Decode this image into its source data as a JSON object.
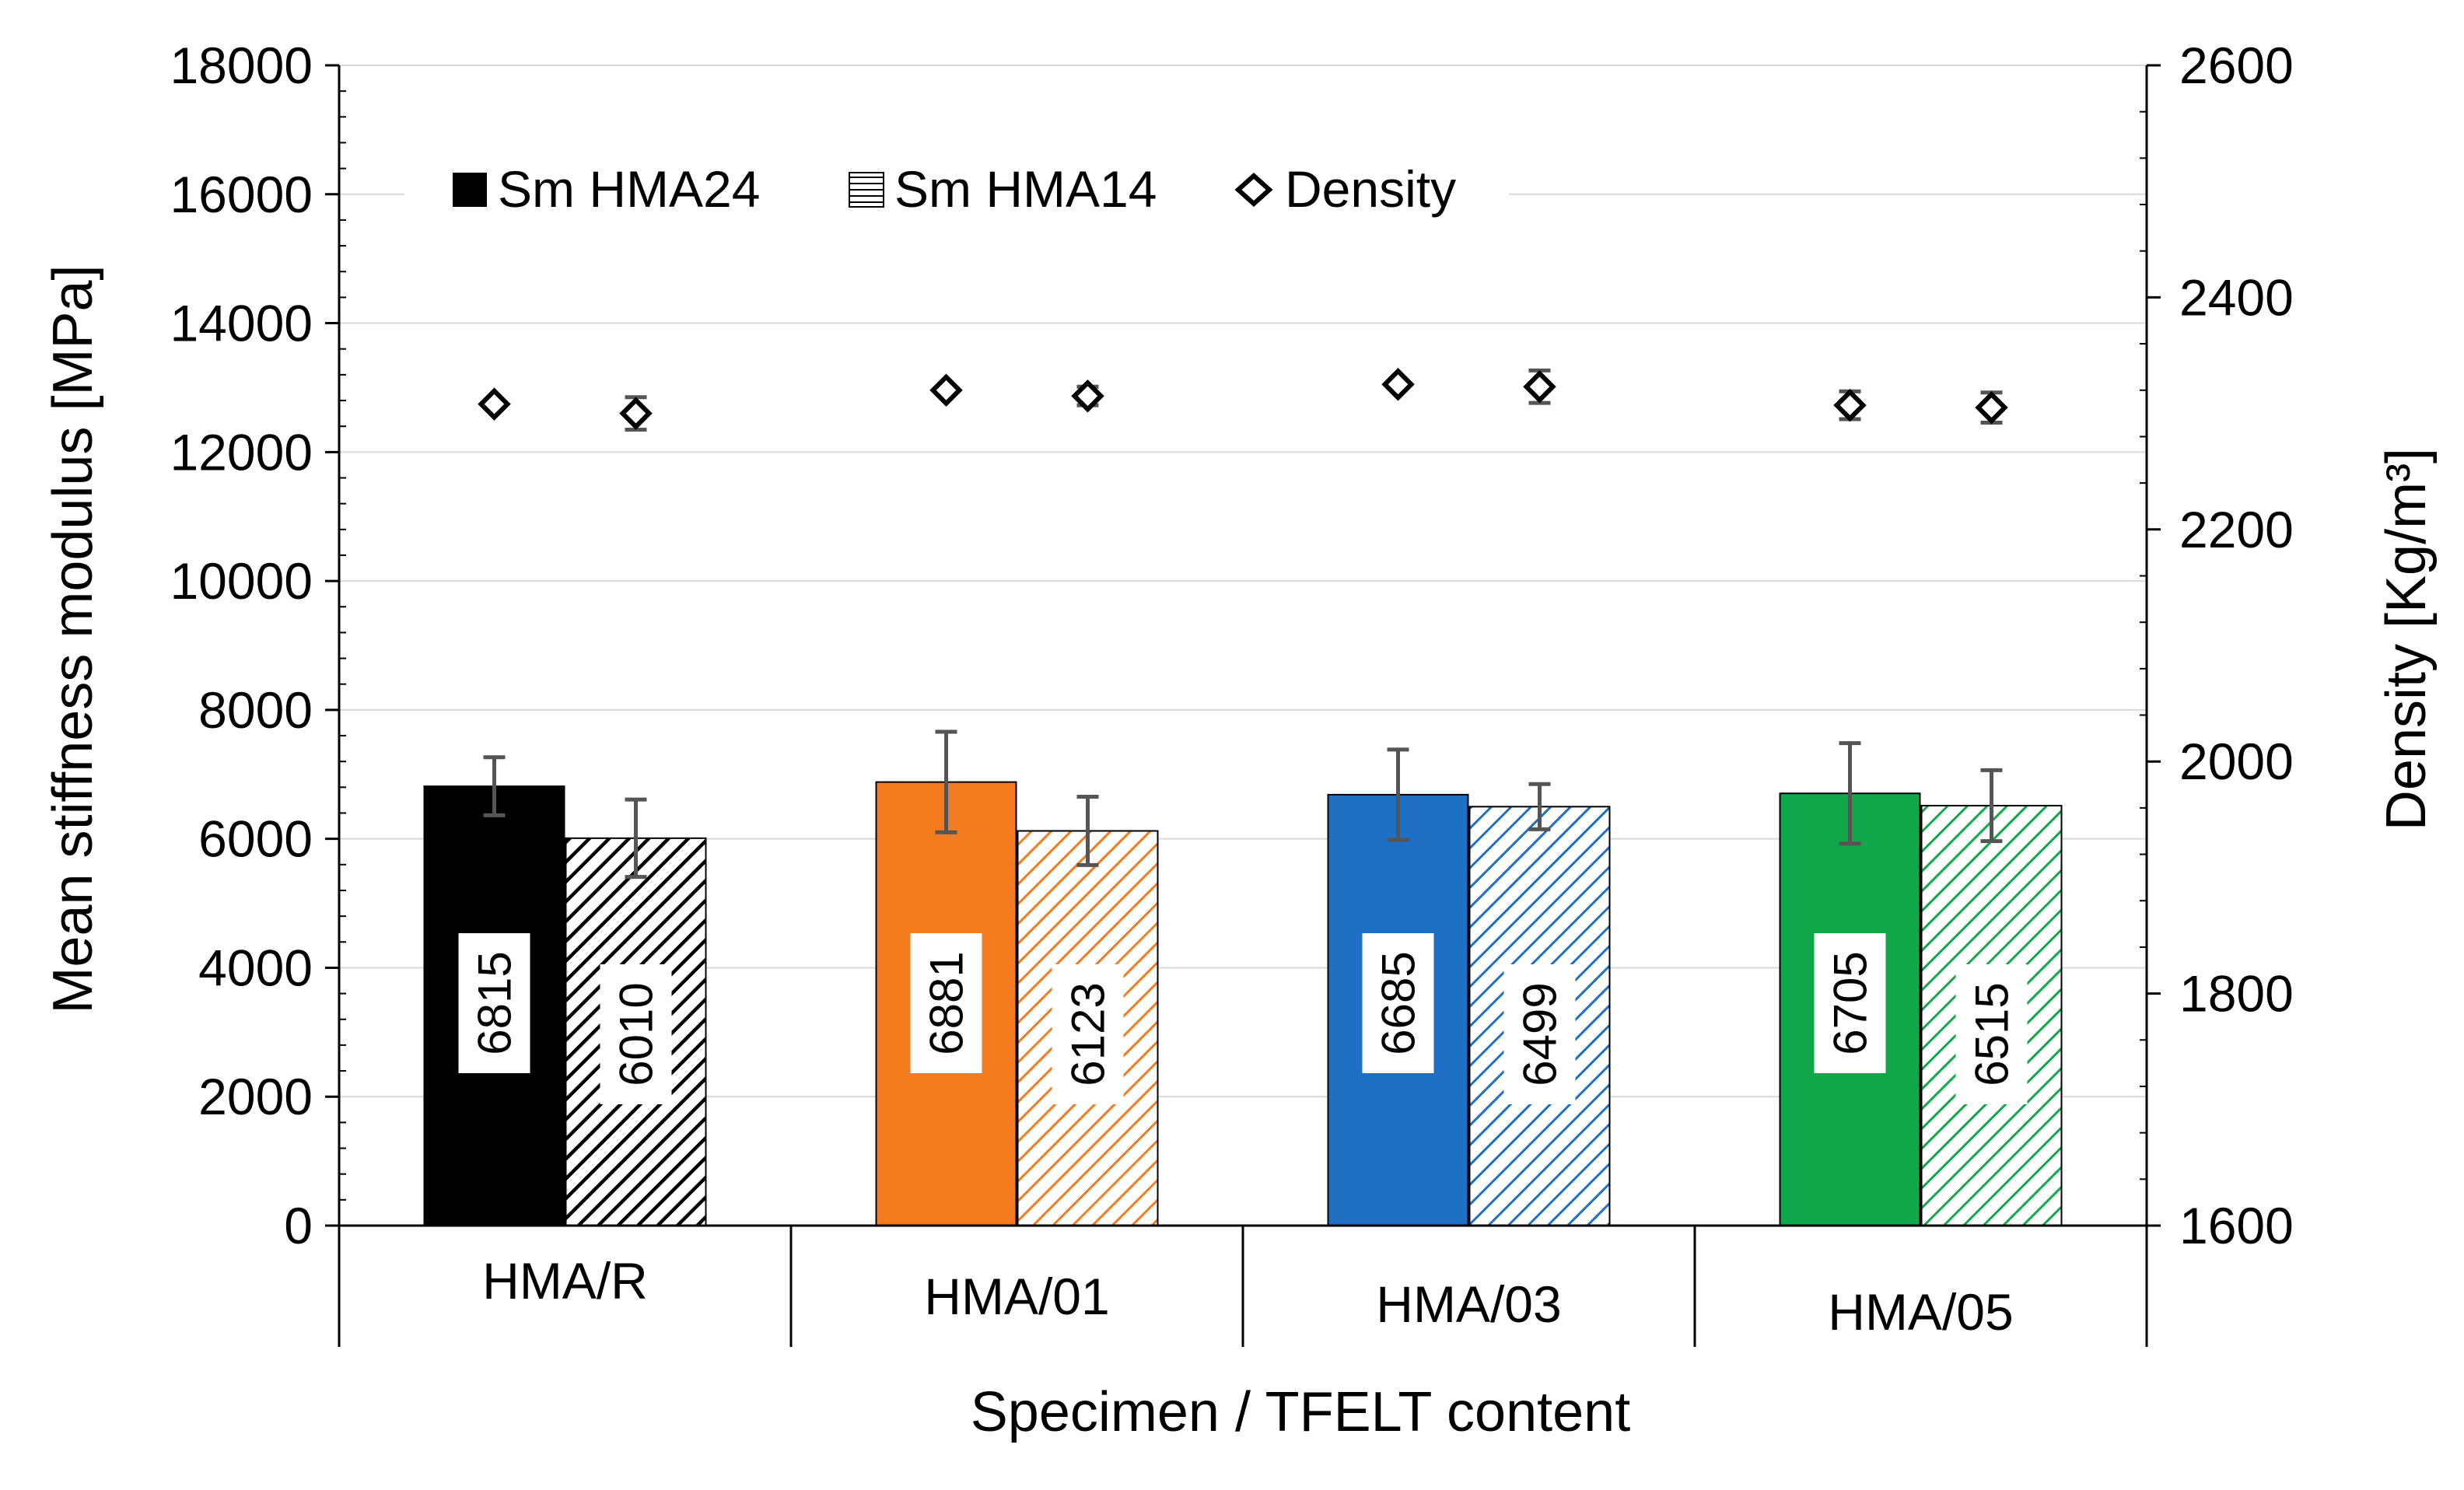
{
  "chart_data": {
    "type": "bar",
    "xlabel": "Specimen / TFELT content",
    "ylabel": "Mean stiffness modulus  [MPa]",
    "y2label": "Density [Kg/m³]",
    "ylim": [
      0,
      18000
    ],
    "y2lim": [
      1600,
      2600
    ],
    "yticks": [
      "0",
      "2000",
      "4000",
      "6000",
      "8000",
      "10000",
      "12000",
      "14000",
      "16000",
      "18000"
    ],
    "y2ticks": [
      "1600",
      "1800",
      "2000",
      "2200",
      "2400",
      "2600"
    ],
    "grid": true,
    "legend_position": "top-left",
    "categories": [
      "HMA/R",
      "HMA/01",
      "HMA/03",
      "HMA/05"
    ],
    "colors": [
      "#000000",
      "#f47b20",
      "#1f6fc5",
      "#10a84b"
    ],
    "series": [
      {
        "name": "Sm HMA24",
        "style": "solid",
        "values": [
          6815,
          6881,
          6685,
          6705
        ],
        "labels": [
          "6815",
          "6881",
          "6685",
          "6705"
        ],
        "errors": [
          450,
          780,
          700,
          780
        ]
      },
      {
        "name": "Sm HMA14",
        "style": "hatched",
        "values": [
          6010,
          6123,
          6499,
          6515
        ],
        "labels": [
          "6010",
          "6123",
          "6499",
          "6515"
        ],
        "errors": [
          600,
          530,
          350,
          550
        ]
      }
    ],
    "density": {
      "name": "Density",
      "marker": "diamond",
      "values": [
        [
          2308,
          2300
        ],
        [
          2320,
          2315
        ],
        [
          2325,
          2323
        ],
        [
          2307,
          2305
        ]
      ],
      "errors": [
        [
          0,
          14
        ],
        [
          0,
          8
        ],
        [
          0,
          14
        ],
        [
          12,
          13
        ]
      ]
    }
  }
}
